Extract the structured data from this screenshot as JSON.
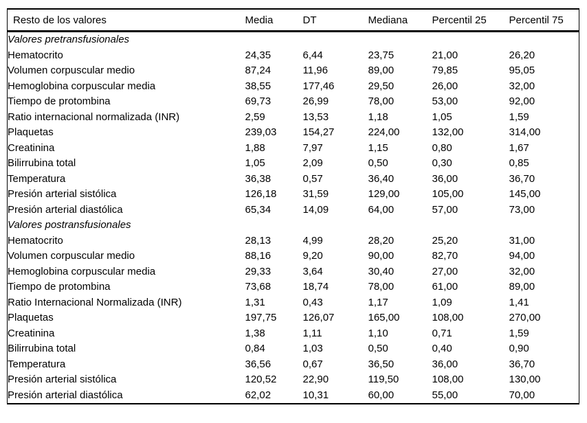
{
  "table": {
    "columns": [
      "Resto de los valores",
      "Media",
      "DT",
      "Mediana",
      "Percentil 25",
      "Percentil 75"
    ],
    "sections": [
      {
        "title": "Valores pretransfusionales",
        "rows": [
          {
            "label": "Hematocrito",
            "values": [
              "24,35",
              "6,44",
              "23,75",
              "21,00",
              "26,20"
            ]
          },
          {
            "label": "Volumen corpuscular medio",
            "values": [
              "87,24",
              "11,96",
              "89,00",
              "79,85",
              "95,05"
            ]
          },
          {
            "label": "Hemoglobina corpuscular media",
            "values": [
              "38,55",
              "177,46",
              "29,50",
              "26,00",
              "32,00"
            ]
          },
          {
            "label": "Tiempo de protombina",
            "values": [
              "69,73",
              "26,99",
              "78,00",
              "53,00",
              "92,00"
            ]
          },
          {
            "label": "Ratio internacional normalizada (INR)",
            "values": [
              "2,59",
              "13,53",
              "1,18",
              "1,05",
              "1,59"
            ]
          },
          {
            "label": "Plaquetas",
            "values": [
              "239,03",
              "154,27",
              "224,00",
              "132,00",
              "314,00"
            ]
          },
          {
            "label": "Creatinina",
            "values": [
              "1,88",
              "7,97",
              "1,15",
              "0,80",
              "1,67"
            ]
          },
          {
            "label": "Bilirrubina total",
            "values": [
              "1,05",
              "2,09",
              "0,50",
              "0,30",
              "0,85"
            ]
          },
          {
            "label": "Temperatura",
            "values": [
              "36,38",
              "0,57",
              "36,40",
              "36,00",
              "36,70"
            ]
          },
          {
            "label": "Presión arterial sistólica",
            "values": [
              "126,18",
              "31,59",
              "129,00",
              "105,00",
              "145,00"
            ]
          },
          {
            "label": "Presión arterial diastólica",
            "values": [
              "65,34",
              "14,09",
              "64,00",
              "57,00",
              "73,00"
            ]
          }
        ]
      },
      {
        "title": "Valores postransfusionales",
        "rows": [
          {
            "label": "Hematocrito",
            "values": [
              "28,13",
              "4,99",
              "28,20",
              "25,20",
              "31,00"
            ]
          },
          {
            "label": "Volumen corpuscular medio",
            "values": [
              "88,16",
              "9,20",
              "90,00",
              "82,70",
              "94,00"
            ]
          },
          {
            "label": "Hemoglobina corpuscular media",
            "values": [
              "29,33",
              "3,64",
              "30,40",
              "27,00",
              "32,00"
            ]
          },
          {
            "label": "Tiempo de protombina",
            "values": [
              "73,68",
              "18,74",
              "78,00",
              "61,00",
              "89,00"
            ]
          },
          {
            "label": "Ratio Internacional Normalizada (INR)",
            "values": [
              "1,31",
              "0,43",
              "1,17",
              "1,09",
              "1,41"
            ]
          },
          {
            "label": "Plaquetas",
            "values": [
              "197,75",
              "126,07",
              "165,00",
              "108,00",
              "270,00"
            ]
          },
          {
            "label": "Creatinina",
            "values": [
              "1,38",
              "1,11",
              "1,10",
              "0,71",
              "1,59"
            ]
          },
          {
            "label": "Bilirrubina total",
            "values": [
              "0,84",
              "1,03",
              "0,50",
              "0,40",
              "0,90"
            ]
          },
          {
            "label": "Temperatura",
            "values": [
              "36,56",
              "0,67",
              "36,50",
              "36,00",
              "36,70"
            ]
          },
          {
            "label": "Presión arterial sistólica",
            "values": [
              "120,52",
              "22,90",
              "119,50",
              "108,00",
              "130,00"
            ]
          },
          {
            "label": "Presión arterial diastólica",
            "values": [
              "62,02",
              "10,31",
              "60,00",
              "55,00",
              "70,00"
            ]
          }
        ]
      }
    ]
  }
}
